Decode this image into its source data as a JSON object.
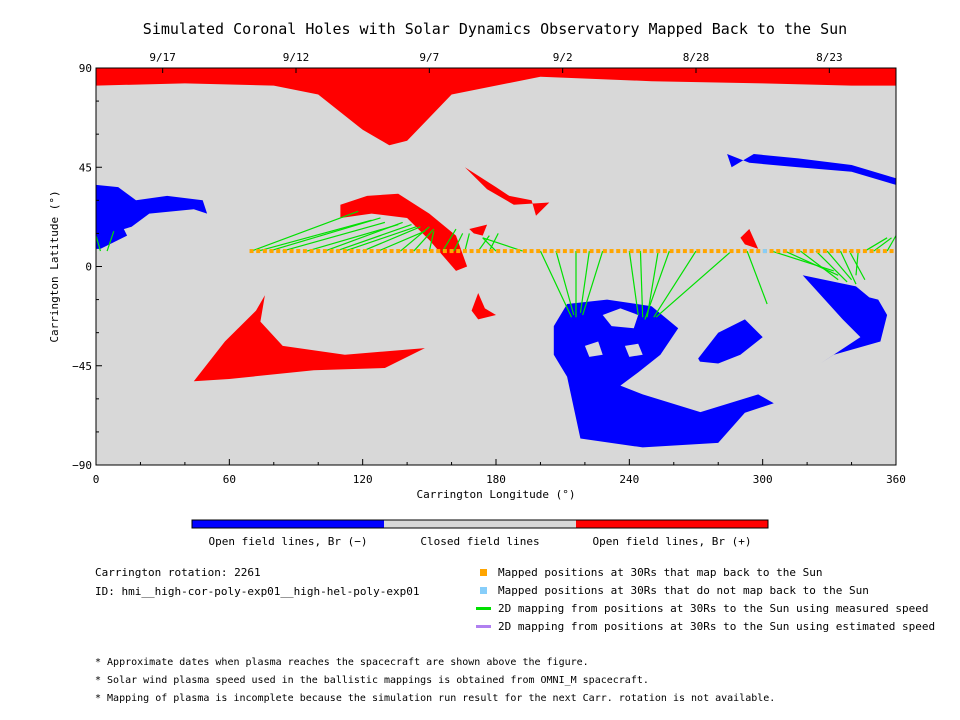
{
  "title": "Simulated Coronal Holes with Solar Dynamics Observatory Mapped Back to the Sun",
  "colors": {
    "open_negative": "#0000ff",
    "closed": "#d8d8d8",
    "open_positive": "#ff0000",
    "mapped": "#ffa500",
    "not_mapped": "#87cefa",
    "measured_speed": "#00e000",
    "estimated_speed": "#b080f0"
  },
  "chart_data": {
    "type": "map",
    "xlabel": "Carrington Longitude (°)",
    "ylabel": "Carrington Latitude (°)",
    "xlim": [
      0,
      360
    ],
    "ylim": [
      -90,
      90
    ],
    "x_ticks": [
      0,
      60,
      120,
      180,
      240,
      300,
      360
    ],
    "y_ticks": [
      -90,
      -45,
      0,
      45,
      90
    ],
    "y_tick_labels": [
      "−90",
      "−45",
      "0",
      "45",
      "90"
    ],
    "top_axis_dates": [
      {
        "label": "9/17",
        "lon": 30
      },
      {
        "label": "9/12",
        "lon": 90
      },
      {
        "label": "9/7",
        "lon": 150
      },
      {
        "label": "9/2",
        "lon": 210
      },
      {
        "label": "8/28",
        "lon": 270
      },
      {
        "label": "8/23",
        "lon": 330
      }
    ],
    "colorbar": [
      {
        "label": "Open field lines, Br (−)",
        "color": "#0000ff"
      },
      {
        "label": "Closed field lines",
        "color": "#d8d8d8"
      },
      {
        "label": "Open field lines, Br (+)",
        "color": "#ff0000"
      }
    ],
    "regions": [
      {
        "polarity": "+",
        "points": [
          [
            0,
            90
          ],
          [
            360,
            90
          ],
          [
            360,
            82
          ],
          [
            340,
            82
          ],
          [
            300,
            83
          ],
          [
            250,
            84
          ],
          [
            200,
            86
          ],
          [
            160,
            78
          ],
          [
            140,
            57
          ],
          [
            132,
            55
          ],
          [
            120,
            62
          ],
          [
            100,
            78
          ],
          [
            80,
            82
          ],
          [
            40,
            83
          ],
          [
            0,
            82
          ]
        ]
      },
      {
        "polarity": "+",
        "points": [
          [
            44,
            -52
          ],
          [
            58,
            -34
          ],
          [
            72,
            -20
          ],
          [
            76,
            -13
          ],
          [
            74,
            -25
          ],
          [
            84,
            -36
          ],
          [
            112,
            -40
          ],
          [
            148,
            -37
          ],
          [
            130,
            -46
          ],
          [
            98,
            -47
          ],
          [
            60,
            -51
          ]
        ]
      },
      {
        "polarity": "+",
        "points": [
          [
            110,
            28
          ],
          [
            122,
            32
          ],
          [
            136,
            33
          ],
          [
            150,
            24
          ],
          [
            162,
            14
          ],
          [
            167,
            0
          ],
          [
            162,
            -2
          ],
          [
            150,
            12
          ],
          [
            140,
            22
          ],
          [
            124,
            24
          ],
          [
            110,
            22
          ]
        ]
      },
      {
        "polarity": "+",
        "points": [
          [
            156,
            10
          ],
          [
            162,
            9
          ],
          [
            166,
            2
          ],
          [
            160,
            5
          ]
        ]
      },
      {
        "polarity": "+",
        "points": [
          [
            166,
            45
          ],
          [
            180,
            36
          ],
          [
            186,
            32
          ],
          [
            196,
            30
          ],
          [
            198,
            23
          ],
          [
            204,
            29
          ],
          [
            188,
            28
          ],
          [
            176,
            35
          ]
        ]
      },
      {
        "polarity": "+",
        "points": [
          [
            168,
            17
          ],
          [
            176,
            19
          ],
          [
            174,
            14
          ],
          [
            170,
            15
          ]
        ]
      },
      {
        "polarity": "+",
        "points": [
          [
            169,
            -20
          ],
          [
            172,
            -12
          ],
          [
            175,
            -19
          ],
          [
            180,
            -22
          ],
          [
            172,
            -24
          ]
        ]
      },
      {
        "polarity": "+",
        "points": [
          [
            290,
            13
          ],
          [
            294,
            17
          ],
          [
            298,
            8
          ],
          [
            292,
            10
          ]
        ]
      },
      {
        "polarity": "−",
        "points": [
          [
            0,
            37
          ],
          [
            10,
            36
          ],
          [
            18,
            30
          ],
          [
            32,
            32
          ],
          [
            48,
            30
          ],
          [
            50,
            24
          ],
          [
            44,
            26
          ],
          [
            24,
            24
          ],
          [
            16,
            18
          ],
          [
            6,
            15
          ],
          [
            0,
            13
          ]
        ]
      },
      {
        "polarity": "−",
        "points": [
          [
            0,
            13
          ],
          [
            12,
            18
          ],
          [
            14,
            14
          ],
          [
            2,
            8
          ],
          [
            0,
            8
          ]
        ]
      },
      {
        "polarity": "−",
        "points": [
          [
            206,
            -27
          ],
          [
            212,
            -17
          ],
          [
            230,
            -15
          ],
          [
            250,
            -18
          ],
          [
            262,
            -28
          ],
          [
            254,
            -40
          ],
          [
            244,
            -48
          ],
          [
            236,
            -54
          ],
          [
            246,
            -58
          ],
          [
            272,
            -66
          ],
          [
            298,
            -58
          ],
          [
            305,
            -62
          ],
          [
            290,
            -67
          ],
          [
            294,
            -64
          ],
          [
            280,
            -80
          ],
          [
            246,
            -82
          ],
          [
            218,
            -78
          ],
          [
            212,
            -50
          ],
          [
            206,
            -40
          ]
        ]
      },
      {
        "polarity": "−",
        "points": [
          [
            270,
            -43
          ],
          [
            280,
            -30
          ],
          [
            292,
            -24
          ],
          [
            300,
            -32
          ],
          [
            290,
            -40
          ],
          [
            280,
            -44
          ]
        ]
      },
      {
        "polarity": "−",
        "points": [
          [
            284,
            51
          ],
          [
            294,
            47
          ],
          [
            316,
            45
          ],
          [
            340,
            43
          ],
          [
            360,
            37
          ],
          [
            360,
            40
          ],
          [
            340,
            46
          ],
          [
            316,
            49
          ],
          [
            296,
            51
          ],
          [
            286,
            45
          ]
        ]
      },
      {
        "polarity": "−",
        "points": [
          [
            318,
            -4
          ],
          [
            342,
            -9
          ],
          [
            348,
            -14
          ],
          [
            352,
            -15
          ],
          [
            356,
            -22
          ],
          [
            353,
            -34
          ],
          [
            332,
            -40
          ],
          [
            326,
            -44
          ],
          [
            344,
            -32
          ],
          [
            336,
            -24
          ]
        ]
      }
    ],
    "holes": [
      {
        "polarity": "−",
        "points": [
          [
            228,
            -22
          ],
          [
            236,
            -19
          ],
          [
            244,
            -22
          ],
          [
            242,
            -28
          ],
          [
            232,
            -27
          ]
        ]
      },
      {
        "polarity": "−",
        "points": [
          [
            220,
            -36
          ],
          [
            226,
            -34
          ],
          [
            228,
            -40
          ],
          [
            222,
            -41
          ]
        ]
      },
      {
        "polarity": "−",
        "points": [
          [
            238,
            -36
          ],
          [
            244,
            -35
          ],
          [
            246,
            -40
          ],
          [
            240,
            -41
          ]
        ]
      },
      {
        "polarity": "−",
        "points": [
          [
            260,
            -43
          ],
          [
            270,
            -40
          ],
          [
            274,
            -47
          ],
          [
            262,
            -49
          ]
        ]
      }
    ],
    "mapped_points": {
      "lon_start": 70,
      "lon_end": 360,
      "step": 3,
      "lat": 7
    },
    "not_mapped_points": [
      {
        "lon": 301,
        "lat": 7
      }
    ],
    "mapping_lines": [
      {
        "from": [
          70,
          7
        ],
        "to": [
          118,
          25
        ]
      },
      {
        "from": [
          73,
          7
        ],
        "to": [
          124,
          21
        ]
      },
      {
        "from": [
          78,
          7
        ],
        "to": [
          128,
          22
        ]
      },
      {
        "from": [
          84,
          7
        ],
        "to": [
          130,
          20
        ]
      },
      {
        "from": [
          95,
          7
        ],
        "to": [
          136,
          19
        ]
      },
      {
        "from": [
          103,
          7
        ],
        "to": [
          138,
          20
        ]
      },
      {
        "from": [
          108,
          7
        ],
        "to": [
          142,
          19
        ]
      },
      {
        "from": [
          112,
          7
        ],
        "to": [
          144,
          18
        ]
      },
      {
        "from": [
          120,
          7
        ],
        "to": [
          146,
          18
        ]
      },
      {
        "from": [
          127,
          7
        ],
        "to": [
          148,
          16
        ]
      },
      {
        "from": [
          137,
          7
        ],
        "to": [
          150,
          18
        ]
      },
      {
        "from": [
          143,
          7
        ],
        "to": [
          152,
          17
        ]
      },
      {
        "from": [
          150,
          7
        ],
        "to": [
          152,
          16
        ]
      },
      {
        "from": [
          156,
          7
        ],
        "to": [
          162,
          17
        ]
      },
      {
        "from": [
          161,
          7
        ],
        "to": [
          165,
          15
        ]
      },
      {
        "from": [
          166,
          7
        ],
        "to": [
          168,
          15
        ]
      },
      {
        "from": [
          172,
          7
        ],
        "to": [
          177,
          14
        ]
      },
      {
        "from": [
          177,
          7
        ],
        "to": [
          181,
          15
        ]
      },
      {
        "from": [
          180,
          7
        ],
        "to": [
          174,
          13
        ]
      },
      {
        "from": [
          192,
          7
        ],
        "to": [
          174,
          13
        ]
      },
      {
        "from": [
          2,
          7
        ],
        "to": [
          0,
          14
        ]
      },
      {
        "from": [
          5,
          7
        ],
        "to": [
          8,
          16
        ]
      },
      {
        "from": [
          200,
          7
        ],
        "to": [
          214,
          -23
        ]
      },
      {
        "from": [
          207,
          7
        ],
        "to": [
          215,
          -22
        ]
      },
      {
        "from": [
          216,
          7
        ],
        "to": [
          216,
          -23
        ]
      },
      {
        "from": [
          222,
          7
        ],
        "to": [
          218,
          -21
        ]
      },
      {
        "from": [
          228,
          7
        ],
        "to": [
          219,
          -22
        ]
      },
      {
        "from": [
          240,
          7
        ],
        "to": [
          244,
          -22
        ]
      },
      {
        "from": [
          245,
          7
        ],
        "to": [
          246,
          -23
        ]
      },
      {
        "from": [
          253,
          7
        ],
        "to": [
          248,
          -23
        ]
      },
      {
        "from": [
          258,
          7
        ],
        "to": [
          247,
          -24
        ]
      },
      {
        "from": [
          270,
          7
        ],
        "to": [
          251,
          -23
        ]
      },
      {
        "from": [
          286,
          7
        ],
        "to": [
          252,
          -23
        ]
      },
      {
        "from": [
          293,
          7
        ],
        "to": [
          302,
          -17
        ]
      },
      {
        "from": [
          304,
          7
        ],
        "to": [
          332,
          -2
        ]
      },
      {
        "from": [
          310,
          7
        ],
        "to": [
          334,
          -4
        ]
      },
      {
        "from": [
          317,
          7
        ],
        "to": [
          334,
          -6
        ]
      },
      {
        "from": [
          324,
          7
        ],
        "to": [
          338,
          -7
        ]
      },
      {
        "from": [
          329,
          7
        ],
        "to": [
          340,
          -6
        ]
      },
      {
        "from": [
          335,
          7
        ],
        "to": [
          342,
          -8
        ]
      },
      {
        "from": [
          339,
          7
        ],
        "to": [
          346,
          -6
        ]
      },
      {
        "from": [
          343,
          7
        ],
        "to": [
          342,
          -4
        ]
      },
      {
        "from": [
          346,
          7
        ],
        "to": [
          356,
          13
        ]
      },
      {
        "from": [
          350,
          7
        ],
        "to": [
          358,
          13
        ]
      },
      {
        "from": [
          356,
          7
        ],
        "to": [
          360,
          14
        ]
      }
    ]
  },
  "info": {
    "rotation": "Carrington rotation: 2261",
    "id": "ID: hmi__high-cor-poly-exp01__high-hel-poly-exp01"
  },
  "legend": [
    {
      "label": "Mapped positions at 30Rs that map back to the Sun",
      "kind": "square",
      "color": "#ffa500"
    },
    {
      "label": "Mapped positions at 30Rs that do not map back to the Sun",
      "kind": "square",
      "color": "#87cefa"
    },
    {
      "label": "2D mapping from positions at 30Rs to the Sun using measured speed",
      "kind": "line",
      "color": "#00e000"
    },
    {
      "label": "2D mapping from positions at 30Rs to the Sun using estimated speed",
      "kind": "line",
      "color": "#b080f0"
    }
  ],
  "footnotes": [
    "* Approximate dates when plasma reaches the spacecraft are shown above the figure.",
    "* Solar wind plasma speed used in the ballistic mappings is obtained from OMNI_M spacecraft.",
    "* Mapping of plasma is incomplete because the simulation run result for the next Carr. rotation is not available."
  ]
}
